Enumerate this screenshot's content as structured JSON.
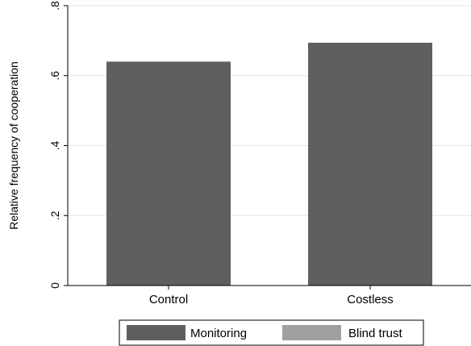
{
  "chart_data": {
    "type": "bar",
    "title": "",
    "xlabel": "",
    "ylabel": "Relative frequency of cooperation",
    "categories": [
      "Control",
      "Costless"
    ],
    "series": [
      {
        "name": "Monitoring",
        "color": "#5f5f5f",
        "values": [
          0.64,
          0.694
        ]
      },
      {
        "name": "Blind trust",
        "color": "#a0a0a0",
        "values": [
          null,
          null
        ]
      }
    ],
    "yticks": [
      0,
      0.2,
      0.4,
      0.6,
      0.8
    ],
    "ytick_labels": [
      "0",
      ".2",
      ".4",
      ".6",
      ".8"
    ],
    "ylim": [
      0,
      0.8
    ],
    "grid": true,
    "legend_position": "bottom"
  }
}
